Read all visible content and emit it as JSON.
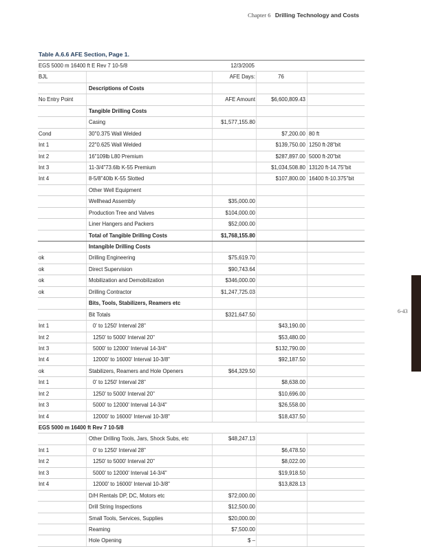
{
  "header": {
    "chapter": "Chapter 6",
    "title": "Drilling Technology and Costs"
  },
  "table_title": "Table A.6.6 AFE Section, Page 1.",
  "page_number": "6-43",
  "rows": [
    {
      "cells": [
        "EGS 5000 m 16400 ft  E  Rev 7  10-5/8",
        "",
        "12/3/2005",
        "",
        ""
      ],
      "style": "nb"
    },
    {
      "cells": [
        "BJL",
        "",
        "AFE Days:",
        "76",
        ""
      ],
      "style": "days"
    },
    {
      "cells": [
        "",
        "Descriptions of Costs",
        "",
        "",
        ""
      ],
      "bold": true
    },
    {
      "cells": [
        "No Entry Point",
        "",
        "AFE Amount",
        "$6,600,809.43",
        ""
      ],
      "style": "amount"
    },
    {
      "cells": [
        "",
        "Tangible Drilling Costs",
        "",
        "",
        ""
      ],
      "bold": true
    },
    {
      "cells": [
        "",
        "Casing",
        "$1,577,155.80",
        "",
        ""
      ]
    },
    {
      "cells": [
        "Cond",
        "30\"0.375 Wall Welded",
        "",
        "$7,200.00",
        "80 ft"
      ]
    },
    {
      "cells": [
        "Int 1",
        "22\"0.625 Wall Welded",
        "",
        "$139,750.00",
        "1250 ft-28\"bit"
      ]
    },
    {
      "cells": [
        "Int 2",
        "16\"109lb L80 Premium",
        "",
        "$287,897.00",
        "5000 ft-20\"bit"
      ]
    },
    {
      "cells": [
        "Int 3",
        "11-3/4\"73.6lb K-55 Premium",
        "",
        "$1,034,508.80",
        "13120 ft-14.75\"bit"
      ]
    },
    {
      "cells": [
        "Int 4",
        "8-5/8\"40lb K-55 Slotted",
        "",
        "$107,800.00",
        "16400 ft-10.375\"bit"
      ]
    },
    {
      "cells": [
        "",
        "Other Well Equipment",
        "",
        "",
        ""
      ]
    },
    {
      "cells": [
        "",
        "Wellhead Assembly",
        "$35,000.00",
        "",
        ""
      ]
    },
    {
      "cells": [
        "",
        "Production Tree and Valves",
        "$104,000.00",
        "",
        ""
      ]
    },
    {
      "cells": [
        "",
        "Liner Hangers and Packers",
        "$52,000.00",
        "",
        ""
      ]
    },
    {
      "cells": [
        "",
        "Total of Tangible Drilling Costs",
        "$1,768,155.80",
        "",
        ""
      ],
      "bold": true,
      "thick": true
    },
    {
      "cells": [
        "",
        "Intangible Drilling Costs",
        "",
        "",
        ""
      ],
      "bold": true
    },
    {
      "cells": [
        "ok",
        "Drilling Engineering",
        "$75,619.70",
        "",
        ""
      ]
    },
    {
      "cells": [
        "ok",
        "Direct Supervision",
        "$90,743.64",
        "",
        ""
      ]
    },
    {
      "cells": [
        "ok",
        "Mobilization and Demobilization",
        "$346,000.00",
        "",
        ""
      ]
    },
    {
      "cells": [
        "ok",
        "Drilling Contractor",
        "$1,247,725.03",
        "",
        ""
      ]
    },
    {
      "cells": [
        "",
        "Bits, Tools, Stabilizers, Reamers etc",
        "",
        "",
        ""
      ],
      "bold": true
    },
    {
      "cells": [
        "",
        "Bit Totals",
        "$321,647.50",
        "",
        ""
      ]
    },
    {
      "cells": [
        "Int 1",
        "0' to 1250' Interval 28\"",
        "",
        "$43,190.00",
        ""
      ],
      "indent": true
    },
    {
      "cells": [
        "Int 2",
        "1250' to 5000' Interval 20\"",
        "",
        "$53,480.00",
        ""
      ],
      "indent": true
    },
    {
      "cells": [
        "Int 3",
        "5000' to 12000' Interval 14-3/4\"",
        "",
        "$132,790.00",
        ""
      ],
      "indent": true
    },
    {
      "cells": [
        "Int 4",
        "12000' to 16000' Interval 10-3/8\"",
        "",
        "$92,187.50",
        ""
      ],
      "indent": true
    },
    {
      "cells": [
        "ok",
        "Stabilizers, Reamers and Hole Openers",
        "$64,329.50",
        "",
        ""
      ]
    },
    {
      "cells": [
        "Int 1",
        "0' to 1250' Interval 28\"",
        "",
        "$8,638.00",
        ""
      ],
      "indent": true
    },
    {
      "cells": [
        "Int 2",
        "1250' to 5000' Interval 20\"",
        "",
        "$10,696.00",
        ""
      ],
      "indent": true
    },
    {
      "cells": [
        "Int 3",
        "5000' to 12000' Interval 14-3/4\"",
        "",
        "$26,558.00",
        ""
      ],
      "indent": true
    },
    {
      "cells": [
        "Int 4",
        "12000' to 16000' Interval 10-3/8\"",
        "",
        "$18,437.50",
        ""
      ],
      "indent": true
    },
    {
      "cells": [
        "EGS 5000 m 16400 ft Rev 7 10-5/8",
        "",
        "",
        "",
        ""
      ],
      "bold": true,
      "style": "nb"
    },
    {
      "cells": [
        "",
        "Other Drilling Tools, Jars, Shock Subs, etc",
        "$48,247.13",
        "",
        ""
      ]
    },
    {
      "cells": [
        "Int 1",
        "0' to 1250' Interval 28\"",
        "",
        "$6,478.50",
        ""
      ],
      "indent": true
    },
    {
      "cells": [
        "Int 2",
        "1250' to 5000' Interval 20\"",
        "",
        "$8,022.00",
        ""
      ],
      "indent": true
    },
    {
      "cells": [
        "Int 3",
        "5000' to 12000' Interval 14-3/4\"",
        "",
        "$19,918.50",
        ""
      ],
      "indent": true
    },
    {
      "cells": [
        "Int 4",
        "12000' to 16000' Interval 10-3/8\"",
        "",
        "$13,828.13",
        ""
      ],
      "indent": true
    },
    {
      "cells": [
        "",
        "D/H Rentals DP, DC, Motors etc",
        "$72,000.00",
        "",
        ""
      ]
    },
    {
      "cells": [
        "",
        "Drill String Inspections",
        "$12,500.00",
        "",
        ""
      ]
    },
    {
      "cells": [
        "",
        "Small Tools, Services, Supplies",
        "$20,000.00",
        "",
        ""
      ]
    },
    {
      "cells": [
        "",
        "Reaming",
        "$7,500.00",
        "",
        ""
      ]
    },
    {
      "cells": [
        "",
        "Hole Opening",
        "$ –",
        "",
        ""
      ]
    }
  ]
}
